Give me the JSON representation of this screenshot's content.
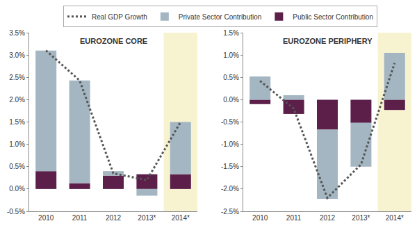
{
  "chart_data": [
    {
      "type": "bar",
      "title": "EUROZONE CORE",
      "stacked": true,
      "grid": false,
      "legend": "top",
      "categories": [
        "2010",
        "2011",
        "2012",
        "2013*",
        "2014*"
      ],
      "ylim": [
        -0.5,
        3.5
      ],
      "yticks": [
        {
          "value": -0.5,
          "label": "-0.5%"
        },
        {
          "value": 0,
          "label": "0.0%"
        },
        {
          "value": 0.5,
          "label": "0.5%"
        },
        {
          "value": 1,
          "label": "1.0%"
        },
        {
          "value": 1.5,
          "label": "1.5%"
        },
        {
          "value": 2,
          "label": "2.0%"
        },
        {
          "value": 2.5,
          "label": "2.5%"
        },
        {
          "value": 3,
          "label": "3.0%"
        },
        {
          "value": 3.5,
          "label": "3.5%"
        }
      ],
      "series": [
        {
          "name": "Real GDP Growth",
          "type": "line",
          "line_style": "dotted",
          "color": "#555555",
          "values": [
            3.1,
            2.43,
            0.35,
            0.2,
            1.5
          ]
        },
        {
          "name": "Private Sector Contribution",
          "type": "bar",
          "color": "#a3b6c2",
          "values": [
            2.7,
            2.3,
            0.1,
            -0.15,
            1.17
          ]
        },
        {
          "name": "Public Sector Contribution",
          "type": "bar",
          "color": "#5b1f4a",
          "values": [
            0.4,
            0.13,
            0.3,
            0.33,
            0.33
          ]
        }
      ]
    },
    {
      "type": "bar",
      "title": "EUROZONE PERIPHERY",
      "stacked": true,
      "grid": false,
      "legend": "top",
      "categories": [
        "2010",
        "2011",
        "2012",
        "2013*",
        "2014*"
      ],
      "ylim": [
        -2.5,
        1.5
      ],
      "yticks": [
        {
          "value": -2.5,
          "label": "-2.5%"
        },
        {
          "value": -2,
          "label": "-2.0%"
        },
        {
          "value": -1.5,
          "label": "-1.5%"
        },
        {
          "value": -1,
          "label": "-1.0%"
        },
        {
          "value": -0.5,
          "label": "-0.5%"
        },
        {
          "value": 0,
          "label": "0.0%"
        },
        {
          "value": 0.5,
          "label": "0.5%"
        },
        {
          "value": 1,
          "label": "1.0%"
        },
        {
          "value": 1.5,
          "label": "1.5%"
        }
      ],
      "series": [
        {
          "name": "Real GDP Growth",
          "type": "line",
          "line_style": "dotted",
          "color": "#555555",
          "values": [
            0.42,
            -0.2,
            -2.2,
            -1.45,
            0.82
          ]
        },
        {
          "name": "Private Sector Contribution",
          "type": "bar",
          "color": "#a3b6c2",
          "values": [
            0.52,
            0.1,
            -1.55,
            -0.98,
            1.05
          ]
        },
        {
          "name": "Public Sector Contribution",
          "type": "bar",
          "color": "#5b1f4a",
          "values": [
            -0.1,
            -0.32,
            -0.67,
            -0.52,
            -0.23
          ]
        }
      ]
    }
  ]
}
